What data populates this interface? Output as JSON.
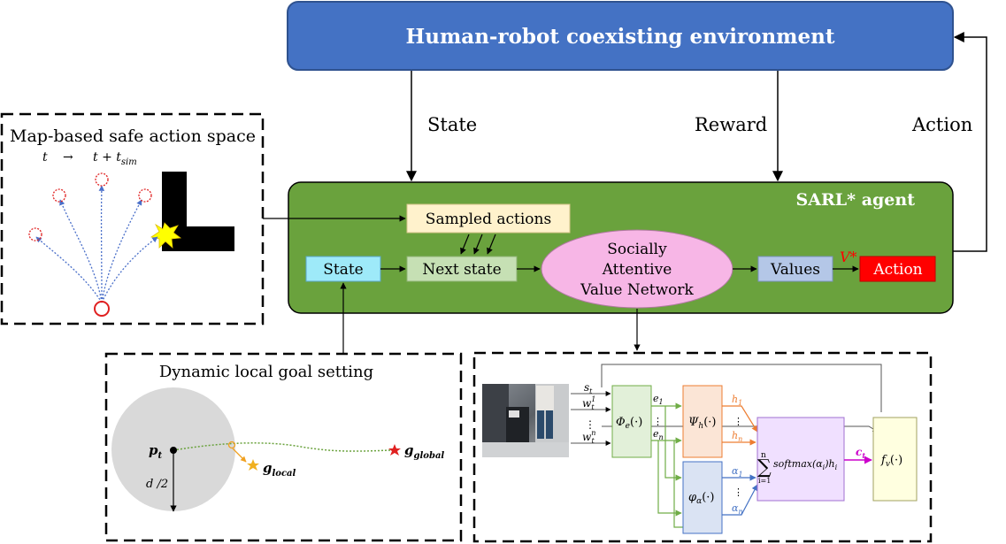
{
  "environment": {
    "title": "Human-robot coexisting environment"
  },
  "signals": {
    "state": "State",
    "reward": "Reward",
    "action": "Action"
  },
  "agent": {
    "title": "SARL* agent",
    "sampled_actions": "Sampled actions",
    "state": "State",
    "next_state": "Next state",
    "network_line1": "Socially",
    "network_line2": "Attentive",
    "network_line3": "Value Network",
    "values": "Values",
    "v_star": "V*",
    "action": "Action"
  },
  "safe_action_panel": {
    "title": "Map-based safe action space",
    "time_start": "t",
    "arrow": "→",
    "time_end": "t + t",
    "time_end_sub": "sim"
  },
  "local_goal_panel": {
    "title": "Dynamic local goal setting",
    "p_label": "p",
    "p_sub": "t",
    "d_label": "d /2",
    "g_local": "g",
    "g_local_sub": "local",
    "g_global": "g",
    "g_global_sub": "global"
  },
  "network_panel": {
    "inputs": [
      "s",
      "w",
      "⋮",
      "w"
    ],
    "input_subs": [
      "t",
      "t",
      "",
      "t"
    ],
    "input_sups": [
      "",
      "1",
      "",
      "n"
    ],
    "phi_e": "Φ",
    "phi_e_sub": "e",
    "phi_e_arg": "(·)",
    "e1": "e",
    "e1_sub": "1",
    "en": "e",
    "en_sub": "n",
    "psi_h": "Ψ",
    "psi_h_sub": "h",
    "psi_h_arg": "(·)",
    "phi_a": "φ",
    "phi_a_sub": "α",
    "phi_a_arg": "(·)",
    "h1": "h",
    "h1_sub": "1",
    "hn": "h",
    "hn_sub": "n",
    "a1": "α",
    "a1_sub": "1",
    "an": "α",
    "an_sub": "n",
    "sum_top": "n",
    "sum_bottom": "i=1",
    "sum_expr": "softmax(α",
    "sum_expr_sub": "i",
    "sum_expr_end": ")h",
    "sum_expr_end_sub": "i",
    "c": "c",
    "c_sub": "t",
    "f_v": "f",
    "f_v_sub": "v",
    "f_v_arg": "(·)",
    "dots": "⋮"
  },
  "colors": {
    "env_fill": "#4472c4",
    "agent_fill": "#6aa23d",
    "sampled_fill": "#fff2cc",
    "state_fill": "#9eeaf9",
    "next_state_fill": "#c6e0b4",
    "network_fill": "#f7b6e6",
    "values_fill": "#b4c7e7",
    "action_fill": "#ff0000",
    "green_line": "#70ad47",
    "orange_line": "#ed7d31",
    "blue_line": "#4472c4",
    "magenta_line": "#cc00cc"
  }
}
